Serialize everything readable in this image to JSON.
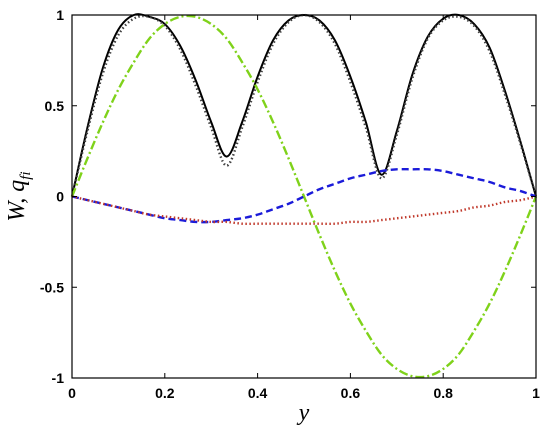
{
  "chart_data": {
    "type": "line",
    "title": "",
    "xlabel": "y",
    "ylabel_main": "W",
    "ylabel_sep": ", ",
    "ylabel_q": "q",
    "ylabel_sub": "fi",
    "xlim": [
      0,
      1
    ],
    "ylim": [
      -1,
      1
    ],
    "x_ticks": [
      0,
      0.2,
      0.4,
      0.6,
      0.8,
      1
    ],
    "x_tick_labels": [
      "0",
      "0.2",
      "0.4",
      "0.6",
      "0.8",
      "1"
    ],
    "y_ticks": [
      -1,
      -0.5,
      0,
      0.5,
      1
    ],
    "y_tick_labels": [
      "-1",
      "-0.5",
      "0",
      "0.5",
      "1"
    ],
    "grid": false,
    "x": [
      0,
      0.0333,
      0.0667,
      0.1,
      0.1333,
      0.1667,
      0.2,
      0.2333,
      0.2667,
      0.3,
      0.3333,
      0.3667,
      0.4,
      0.4333,
      0.4667,
      0.5,
      0.5333,
      0.5667,
      0.6,
      0.6333,
      0.6667,
      0.7,
      0.7333,
      0.7667,
      0.8,
      0.8333,
      0.8667,
      0.9,
      0.9333,
      0.9667,
      1
    ],
    "series": [
      {
        "color": "#000000",
        "style": "solid",
        "values": [
          0,
          0.38,
          0.71,
          0.92,
          1.0,
          0.99,
          0.95,
          0.83,
          0.64,
          0.41,
          0.22,
          0.41,
          0.66,
          0.86,
          0.97,
          1.0,
          0.97,
          0.86,
          0.66,
          0.41,
          0.12,
          0.36,
          0.67,
          0.88,
          0.98,
          1.0,
          0.95,
          0.82,
          0.58,
          0.3,
          0
        ]
      },
      {
        "color": "#404040",
        "style": "dotted",
        "values": [
          0,
          0.36,
          0.68,
          0.89,
          0.98,
          0.99,
          0.94,
          0.81,
          0.61,
          0.38,
          0.17,
          0.38,
          0.63,
          0.84,
          0.96,
          1.0,
          0.96,
          0.84,
          0.63,
          0.38,
          0.1,
          0.34,
          0.65,
          0.87,
          0.97,
          0.99,
          0.94,
          0.8,
          0.56,
          0.29,
          0
        ]
      },
      {
        "color": "#7fd21a",
        "style": "dashdot",
        "values": [
          0,
          0.21,
          0.41,
          0.59,
          0.74,
          0.87,
          0.95,
          0.99,
          0.99,
          0.95,
          0.87,
          0.74,
          0.59,
          0.41,
          0.21,
          0,
          -0.21,
          -0.41,
          -0.59,
          -0.74,
          -0.87,
          -0.95,
          -0.99,
          -0.99,
          -0.95,
          -0.87,
          -0.74,
          -0.59,
          -0.41,
          -0.21,
          0
        ],
        "values_note": ""
      },
      {
        "color": "#1b1bd9",
        "style": "dashed",
        "values": [
          0,
          -0.02,
          -0.04,
          -0.06,
          -0.08,
          -0.1,
          -0.12,
          -0.13,
          -0.14,
          -0.14,
          -0.13,
          -0.12,
          -0.1,
          -0.07,
          -0.04,
          0,
          0.04,
          0.07,
          0.1,
          0.12,
          0.14,
          0.15,
          0.15,
          0.15,
          0.14,
          0.12,
          0.1,
          0.08,
          0.05,
          0.03,
          0
        ]
      },
      {
        "color": "#c0392b",
        "style": "dotted",
        "values": [
          0,
          -0.02,
          -0.04,
          -0.06,
          -0.08,
          -0.1,
          -0.11,
          -0.12,
          -0.13,
          -0.14,
          -0.14,
          -0.15,
          -0.15,
          -0.15,
          -0.15,
          -0.15,
          -0.15,
          -0.15,
          -0.14,
          -0.14,
          -0.13,
          -0.12,
          -0.11,
          -0.1,
          -0.09,
          -0.08,
          -0.06,
          -0.05,
          -0.03,
          -0.02,
          0
        ]
      }
    ]
  }
}
